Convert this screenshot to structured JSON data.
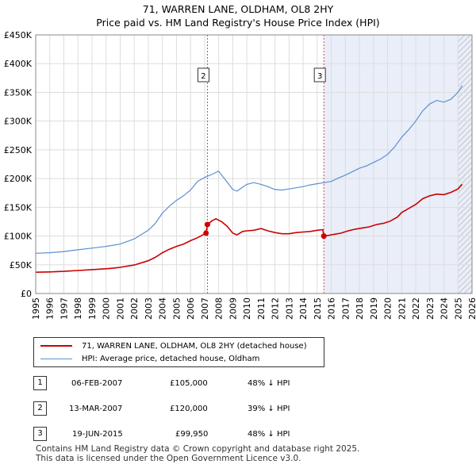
{
  "title_line1": "71, WARREN LANE, OLDHAM, OL8 2HY",
  "title_line2": "Price paid vs. HM Land Registry's House Price Index (HPI)",
  "chart_data": {
    "type": "line",
    "x_range": [
      1995,
      2026
    ],
    "ylim": [
      0,
      450000
    ],
    "y_ticks": [
      0,
      50000,
      100000,
      150000,
      200000,
      250000,
      300000,
      350000,
      400000,
      450000
    ],
    "y_tick_labels": [
      "£0",
      "£50K",
      "£100K",
      "£150K",
      "£200K",
      "£250K",
      "£300K",
      "£350K",
      "£400K",
      "£450K"
    ],
    "x_ticks": [
      1995,
      1996,
      1997,
      1998,
      1999,
      2000,
      2001,
      2002,
      2003,
      2004,
      2005,
      2006,
      2007,
      2008,
      2009,
      2010,
      2011,
      2012,
      2013,
      2014,
      2015,
      2016,
      2017,
      2018,
      2019,
      2020,
      2021,
      2022,
      2023,
      2024,
      2025,
      2026
    ],
    "x_tick_labels": [
      "1995",
      "1996",
      "1997",
      "1998",
      "1999",
      "2000",
      "2001",
      "2002",
      "2003",
      "2004",
      "2005",
      "2006",
      "2007",
      "2008",
      "2009",
      "2010",
      "2011",
      "2012",
      "2013",
      "2014",
      "2015",
      "2016",
      "2017",
      "2018",
      "2019",
      "2020",
      "2021",
      "2022",
      "2023",
      "2024",
      "2025",
      "2026"
    ],
    "grid": true,
    "shaded_region": [
      2015.47,
      2026
    ],
    "hatched_region": [
      2025.0,
      2026
    ],
    "series": [
      {
        "name": "71, WARREN LANE, OLDHAM, OL8 2HY (detached house)",
        "color": "#cc0000",
        "points": [
          [
            1995.0,
            37000
          ],
          [
            1996.0,
            37500
          ],
          [
            1997.0,
            38500
          ],
          [
            1998.0,
            40000
          ],
          [
            1999.0,
            41500
          ],
          [
            2000.0,
            43000
          ],
          [
            2000.5,
            44000
          ],
          [
            2001.0,
            45500
          ],
          [
            2002.0,
            49500
          ],
          [
            2003.0,
            57000
          ],
          [
            2003.5,
            63000
          ],
          [
            2004.0,
            71000
          ],
          [
            2004.5,
            77000
          ],
          [
            2005.0,
            82000
          ],
          [
            2005.5,
            86000
          ],
          [
            2006.0,
            92000
          ],
          [
            2006.5,
            97000
          ],
          [
            2007.1,
            105000
          ],
          [
            2007.2,
            120000
          ],
          [
            2007.5,
            126000
          ],
          [
            2007.8,
            130000
          ],
          [
            2008.2,
            125000
          ],
          [
            2008.6,
            117000
          ],
          [
            2009.0,
            105000
          ],
          [
            2009.3,
            102000
          ],
          [
            2009.7,
            108000
          ],
          [
            2010.0,
            109000
          ],
          [
            2010.5,
            110000
          ],
          [
            2011.0,
            113000
          ],
          [
            2011.5,
            109000
          ],
          [
            2012.0,
            106000
          ],
          [
            2012.5,
            104000
          ],
          [
            2013.0,
            104000
          ],
          [
            2013.5,
            106000
          ],
          [
            2014.0,
            107000
          ],
          [
            2014.5,
            108000
          ],
          [
            2015.0,
            110000
          ],
          [
            2015.4,
            111000
          ],
          [
            2015.47,
            99950
          ],
          [
            2015.8,
            101000
          ],
          [
            2016.2,
            103000
          ],
          [
            2016.7,
            105000
          ],
          [
            2017.2,
            109000
          ],
          [
            2017.7,
            112000
          ],
          [
            2018.2,
            114000
          ],
          [
            2018.7,
            116000
          ],
          [
            2019.2,
            120000
          ],
          [
            2019.7,
            122000
          ],
          [
            2020.2,
            126000
          ],
          [
            2020.7,
            133000
          ],
          [
            2021.0,
            141000
          ],
          [
            2021.5,
            148000
          ],
          [
            2022.0,
            155000
          ],
          [
            2022.5,
            165000
          ],
          [
            2023.0,
            170000
          ],
          [
            2023.5,
            173000
          ],
          [
            2024.0,
            172000
          ],
          [
            2024.5,
            176000
          ],
          [
            2025.0,
            182000
          ],
          [
            2025.3,
            190000
          ]
        ]
      },
      {
        "name": "HPI: Average price, detached house, Oldham",
        "color": "#5b8fd1",
        "points": [
          [
            1995.0,
            70000
          ],
          [
            1996.0,
            71000
          ],
          [
            1997.0,
            73000
          ],
          [
            1998.0,
            76000
          ],
          [
            1999.0,
            79000
          ],
          [
            2000.0,
            82000
          ],
          [
            2001.0,
            86000
          ],
          [
            2002.0,
            95000
          ],
          [
            2003.0,
            110000
          ],
          [
            2003.5,
            122000
          ],
          [
            2004.0,
            140000
          ],
          [
            2004.5,
            152000
          ],
          [
            2005.0,
            162000
          ],
          [
            2005.5,
            170000
          ],
          [
            2006.0,
            180000
          ],
          [
            2006.5,
            195000
          ],
          [
            2007.0,
            202000
          ],
          [
            2007.5,
            207000
          ],
          [
            2008.0,
            213000
          ],
          [
            2008.3,
            203000
          ],
          [
            2008.6,
            194000
          ],
          [
            2009.0,
            181000
          ],
          [
            2009.3,
            178000
          ],
          [
            2009.7,
            185000
          ],
          [
            2010.0,
            190000
          ],
          [
            2010.5,
            193000
          ],
          [
            2011.0,
            190000
          ],
          [
            2011.5,
            186000
          ],
          [
            2012.0,
            181000
          ],
          [
            2012.5,
            180000
          ],
          [
            2013.0,
            182000
          ],
          [
            2013.5,
            184000
          ],
          [
            2014.0,
            186000
          ],
          [
            2014.5,
            189000
          ],
          [
            2015.0,
            191000
          ],
          [
            2015.5,
            193000
          ],
          [
            2016.0,
            195000
          ],
          [
            2016.5,
            201000
          ],
          [
            2017.0,
            206000
          ],
          [
            2017.5,
            212000
          ],
          [
            2018.0,
            218000
          ],
          [
            2018.5,
            222000
          ],
          [
            2019.0,
            228000
          ],
          [
            2019.5,
            234000
          ],
          [
            2020.0,
            242000
          ],
          [
            2020.5,
            255000
          ],
          [
            2021.0,
            272000
          ],
          [
            2021.5,
            285000
          ],
          [
            2022.0,
            300000
          ],
          [
            2022.5,
            318000
          ],
          [
            2023.0,
            330000
          ],
          [
            2023.5,
            336000
          ],
          [
            2024.0,
            333000
          ],
          [
            2024.5,
            338000
          ],
          [
            2025.0,
            350000
          ],
          [
            2025.3,
            362000
          ]
        ]
      }
    ],
    "sales": [
      {
        "label": "1",
        "year": 2007.1,
        "price": 105000
      },
      {
        "label": "2",
        "year": 2007.2,
        "price": 120000
      },
      {
        "label": "3",
        "year": 2015.47,
        "price": 99950
      }
    ],
    "markers": [
      {
        "label": "2",
        "year": 2007.2
      },
      {
        "label": "3",
        "year": 2015.47
      }
    ]
  },
  "legend": [
    {
      "label": "71, WARREN LANE, OLDHAM, OL8 2HY (detached house)",
      "color": "#cc0000"
    },
    {
      "label": "HPI: Average price, detached house, Oldham",
      "color": "#5b8fd1"
    }
  ],
  "sales_table": [
    {
      "num": "1",
      "date": "06-FEB-2007",
      "price": "£105,000",
      "hpi": "48% ↓ HPI"
    },
    {
      "num": "2",
      "date": "13-MAR-2007",
      "price": "£120,000",
      "hpi": "39% ↓ HPI"
    },
    {
      "num": "3",
      "date": "19-JUN-2015",
      "price": "£99,950",
      "hpi": "48% ↓ HPI"
    }
  ],
  "footer_line1": "Contains HM Land Registry data © Crown copyright and database right 2025.",
  "footer_line2": "This data is licensed under the Open Government Licence v3.0."
}
